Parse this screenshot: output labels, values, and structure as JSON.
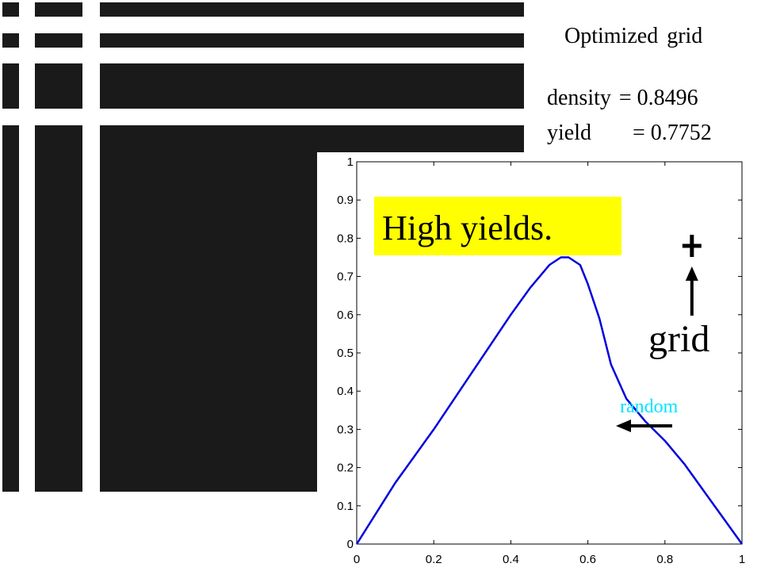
{
  "header": {
    "title": "Optimized grid",
    "density_label": "density",
    "density_value": "= 0.8496",
    "yield_label": "yield",
    "yield_value": "= 0.7752"
  },
  "annotations": {
    "callout": "High yields.",
    "grid_label": "grid",
    "random_label": "random",
    "callout_color": "#ffff00",
    "random_color": "#00e5ff"
  },
  "chart_data": {
    "type": "line",
    "xlim": [
      0,
      1
    ],
    "ylim": [
      0,
      1
    ],
    "xticks": [
      "0",
      "0.2",
      "0.4",
      "0.6",
      "0.8",
      "1"
    ],
    "yticks": [
      "0",
      "0.1",
      "0.2",
      "0.3",
      "0.4",
      "0.5",
      "0.6",
      "0.7",
      "0.8",
      "0.9",
      "1"
    ],
    "grid": false,
    "series": [
      {
        "color": "#0000dd",
        "x": [
          0,
          0.1,
          0.2,
          0.3,
          0.4,
          0.45,
          0.5,
          0.53,
          0.55,
          0.58,
          0.6,
          0.63,
          0.66,
          0.7,
          0.75,
          0.8,
          0.85,
          0.9,
          0.95,
          1.0
        ],
        "y": [
          0,
          0.16,
          0.3,
          0.45,
          0.6,
          0.67,
          0.73,
          0.75,
          0.75,
          0.73,
          0.68,
          0.59,
          0.47,
          0.38,
          0.32,
          0.27,
          0.21,
          0.14,
          0.07,
          0
        ]
      }
    ],
    "markers": [
      {
        "name": "grid",
        "x": 0.87,
        "y": 0.78,
        "symbol": "+"
      }
    ]
  }
}
